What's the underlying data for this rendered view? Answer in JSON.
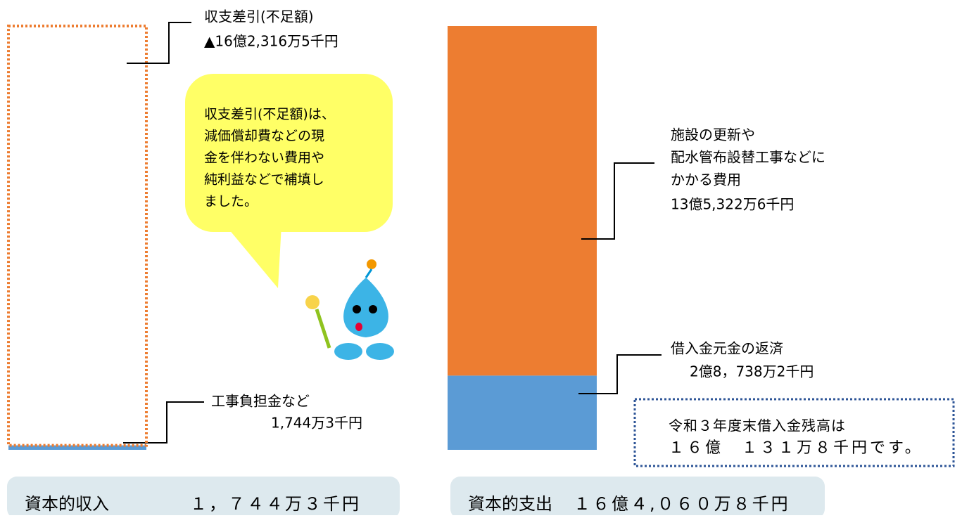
{
  "chart_data": {
    "type": "stacked-bar",
    "bars": [
      {
        "title": "資本的収入",
        "total_text": "１，７４４万３千円",
        "segments": [
          {
            "name": [
              "工事負担金など"
            ],
            "value": 17443,
            "value_label": "1,744万3千円",
            "color": "#5b9bd5"
          },
          {
            "name": [
              "収支差引(不足額)"
            ],
            "value": 1623165,
            "value_label": "▲16億2,316万5千円",
            "color": "none",
            "border": "#ed7d31"
          }
        ]
      },
      {
        "title": "資本的支出",
        "total_text": "１６億４,０６０万８千円",
        "segments": [
          {
            "name": [
              "借入金元金の返済"
            ],
            "value": 287382,
            "value_label": "2億8，738万2千円",
            "color": "#5b9bd5"
          },
          {
            "name": [
              "施設の更新や",
              "配水管布設替工事などに",
              "かかる費用"
            ],
            "value": 1353226,
            "value_label": "13億5,322万6千円",
            "color": "#ed7d31"
          }
        ]
      }
    ]
  },
  "callout": {
    "lines": [
      "収支差引(不足額)は、",
      "減価償却費などの現",
      "金を伴わない費用や",
      "純利益などで補填し",
      "ました。"
    ]
  },
  "note": {
    "lines": [
      "令和３年度末借入金残高は",
      "１６億　１３１万８千円です。"
    ]
  }
}
